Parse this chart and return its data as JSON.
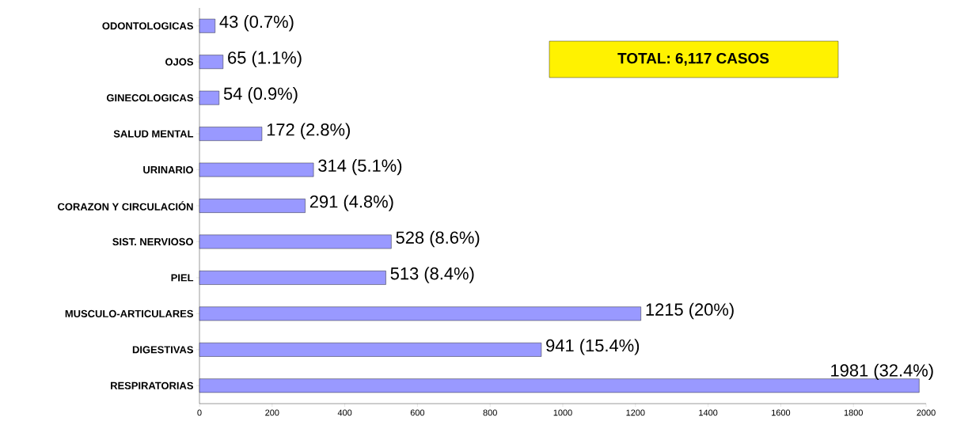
{
  "chart_data": {
    "type": "bar",
    "orientation": "horizontal",
    "categories": [
      "ODONTOLOGICAS",
      "OJOS",
      "GINECOLOGICAS",
      "SALUD MENTAL",
      "URINARIO",
      "CORAZON Y CIRCULACIÓN",
      "SIST. NERVIOSO",
      "PIEL",
      "MUSCULO-ARTICULARES",
      "DIGESTIVAS",
      "RESPIRATORIAS"
    ],
    "values": [
      43,
      65,
      54,
      172,
      314,
      291,
      528,
      513,
      1215,
      941,
      1981
    ],
    "value_labels": [
      "43 (0.7%)",
      "65 (1.1%)",
      "54 (0.9%)",
      "172 (2.8%)",
      "314 (5.1%)",
      "291 (4.8%)",
      "528 (8.6%)",
      "513 (8.4%)",
      "1215 (20%)",
      "941 (15.4%)",
      "1981 (32.4%)"
    ],
    "color": "#9999ff",
    "xlim": [
      0,
      2000
    ],
    "xticks": [
      0,
      200,
      400,
      600,
      800,
      1000,
      1200,
      1400,
      1600,
      1800,
      2000
    ],
    "annotations": [
      "TOTAL:  6,117 CASOS"
    ]
  }
}
